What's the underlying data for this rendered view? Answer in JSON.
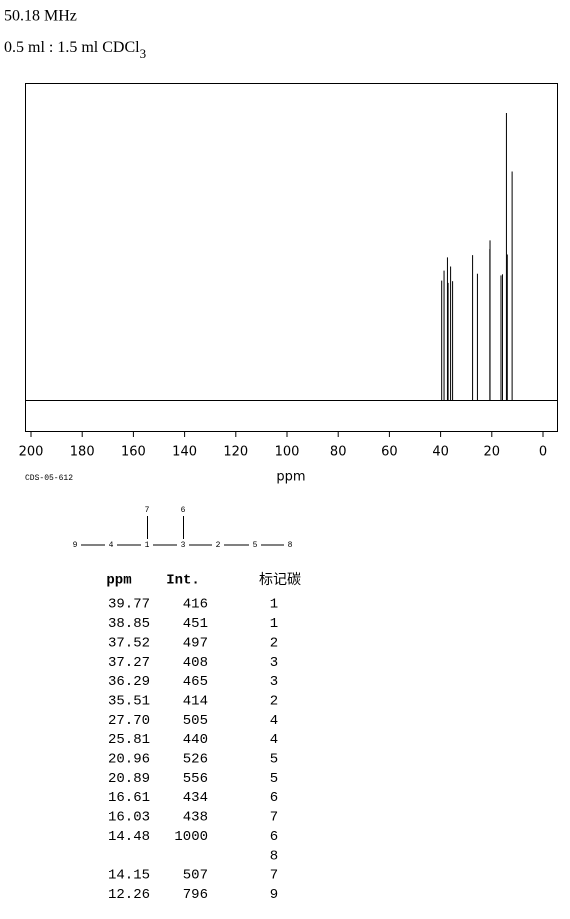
{
  "header": {
    "frequency": "50.18 MHz",
    "solvent": "0.5 ml : 1.5 ml CDCl",
    "solvent_subscript": "3"
  },
  "chart_data": {
    "type": "spectrum",
    "x": [
      39.77,
      38.85,
      37.52,
      37.27,
      36.29,
      35.51,
      27.7,
      25.81,
      20.96,
      20.89,
      16.61,
      16.03,
      14.48,
      14.15,
      12.26
    ],
    "values": [
      416,
      451,
      497,
      408,
      465,
      414,
      505,
      440,
      526,
      556,
      434,
      438,
      1000,
      507,
      796
    ],
    "color": "#000000",
    "xlim": [
      200,
      0
    ],
    "xticks": [
      200,
      180,
      160,
      140,
      120,
      100,
      80,
      60,
      40,
      20,
      0
    ],
    "xlabel": "ppm",
    "sample_id": "CDS-05-612"
  },
  "structure": {
    "chain": [
      "9",
      "4",
      "1",
      "3",
      "2",
      "5",
      "8"
    ],
    "branches": [
      "7",
      "6"
    ]
  },
  "table": {
    "headers": [
      "ppm",
      "Int.",
      "标记碳"
    ],
    "rows": [
      {
        "ppm": "39.77",
        "int": "416",
        "carbons": [
          "1"
        ]
      },
      {
        "ppm": "38.85",
        "int": "451",
        "carbons": [
          "1"
        ]
      },
      {
        "ppm": "37.52",
        "int": "497",
        "carbons": [
          "2"
        ]
      },
      {
        "ppm": "37.27",
        "int": "408",
        "carbons": [
          "3"
        ]
      },
      {
        "ppm": "36.29",
        "int": "465",
        "carbons": [
          "3"
        ]
      },
      {
        "ppm": "35.51",
        "int": "414",
        "carbons": [
          "2"
        ]
      },
      {
        "ppm": "27.70",
        "int": "505",
        "carbons": [
          "4"
        ]
      },
      {
        "ppm": "25.81",
        "int": "440",
        "carbons": [
          "4"
        ]
      },
      {
        "ppm": "20.96",
        "int": "526",
        "carbons": [
          "5"
        ]
      },
      {
        "ppm": "20.89",
        "int": "556",
        "carbons": [
          "5"
        ]
      },
      {
        "ppm": "16.61",
        "int": "434",
        "carbons": [
          "6"
        ]
      },
      {
        "ppm": "16.03",
        "int": "438",
        "carbons": [
          "7"
        ]
      },
      {
        "ppm": "14.48",
        "int": "1000",
        "carbons": [
          "6",
          "8"
        ]
      },
      {
        "ppm": "14.15",
        "int": "507",
        "carbons": [
          "7"
        ]
      },
      {
        "ppm": "12.26",
        "int": "796",
        "carbons": [
          "9"
        ]
      }
    ]
  }
}
